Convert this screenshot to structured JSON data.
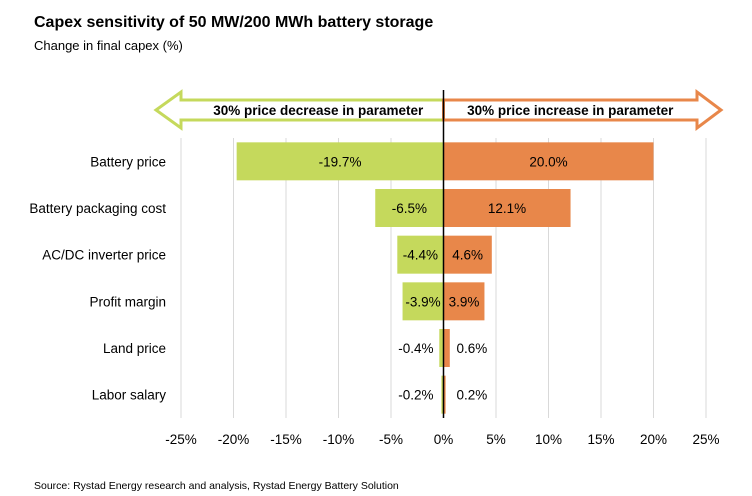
{
  "title": "Capex sensitivity of 50 MW/200 MWh battery storage",
  "subtitle": "Change in final capex (%)",
  "source": "Source: Rystad Energy research and analysis, Rystad Energy Battery Solution",
  "arrows": {
    "decrease": "30% price decrease in parameter",
    "increase": "30% price increase in parameter"
  },
  "colors": {
    "decrease": "#C5D95C",
    "increase": "#E8874A",
    "axis": "#000000",
    "grid": "#D9D9D9"
  },
  "chart_data": {
    "type": "bar",
    "orientation": "horizontal",
    "title": "Capex sensitivity of 50 MW/200 MWh battery storage",
    "subtitle": "Change in final capex (%)",
    "categories": [
      "Battery price",
      "Battery packaging cost",
      "AC/DC inverter price",
      "Profit margin",
      "Land price",
      "Labor salary"
    ],
    "series": [
      {
        "name": "30% price decrease in parameter",
        "values": [
          -19.7,
          -6.5,
          -4.4,
          -3.9,
          -0.4,
          -0.2
        ],
        "labels": [
          "-19.7%",
          "-6.5%",
          "-4.4%",
          "-3.9%",
          "-0.4%",
          "-0.2%"
        ]
      },
      {
        "name": "30% price increase in parameter",
        "values": [
          20.0,
          12.1,
          4.6,
          3.9,
          0.6,
          0.2
        ],
        "labels": [
          "20.0%",
          "12.1%",
          "4.6%",
          "3.9%",
          "0.6%",
          "0.2%"
        ]
      }
    ],
    "xlim": [
      -25,
      25
    ],
    "xticks": [
      -25,
      -20,
      -15,
      -10,
      -5,
      0,
      5,
      10,
      15,
      20,
      25
    ],
    "xtick_labels": [
      "-25%",
      "-20%",
      "-15%",
      "-10%",
      "-5%",
      "0%",
      "5%",
      "10%",
      "15%",
      "20%",
      "25%"
    ],
    "grid": true
  }
}
